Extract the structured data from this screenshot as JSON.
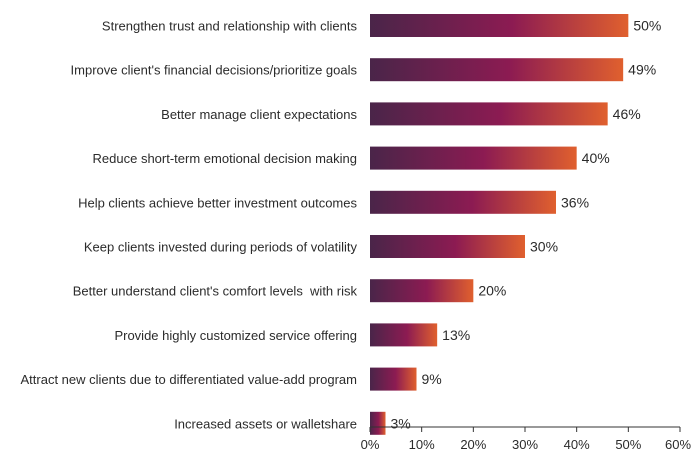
{
  "chart_data": {
    "type": "bar",
    "orientation": "horizontal",
    "categories": [
      "Strengthen trust and relationship with clients",
      "Improve client's financial decisions/prioritize goals",
      "Better manage client expectations",
      "Reduce short-term emotional decision making",
      "Help clients achieve better investment outcomes",
      "Keep clients invested during periods of volatility",
      "Better understand client's comfort levels  with risk",
      "Provide highly customized service offering",
      "Attract new clients due to differentiated value-add program",
      "Increased assets or walletshare"
    ],
    "values": [
      50,
      49,
      46,
      40,
      36,
      30,
      20,
      13,
      9,
      3
    ],
    "value_labels": [
      "50%",
      "49%",
      "46%",
      "40%",
      "36%",
      "30%",
      "20%",
      "13%",
      "9%",
      "3%"
    ],
    "xlim": [
      0,
      60
    ],
    "xticks": [
      0,
      10,
      20,
      30,
      40,
      50,
      60
    ],
    "xtick_labels": [
      "0%",
      "10%",
      "20%",
      "30%",
      "40%",
      "50%",
      "60%"
    ],
    "title": "",
    "xlabel": "",
    "ylabel": "",
    "grid": false,
    "colors": {
      "gradient_start": "#4a2549",
      "gradient_mid": "#8c1b52",
      "gradient_end": "#e0602e",
      "axis": "#333333",
      "text": "#2b2b2b"
    }
  }
}
